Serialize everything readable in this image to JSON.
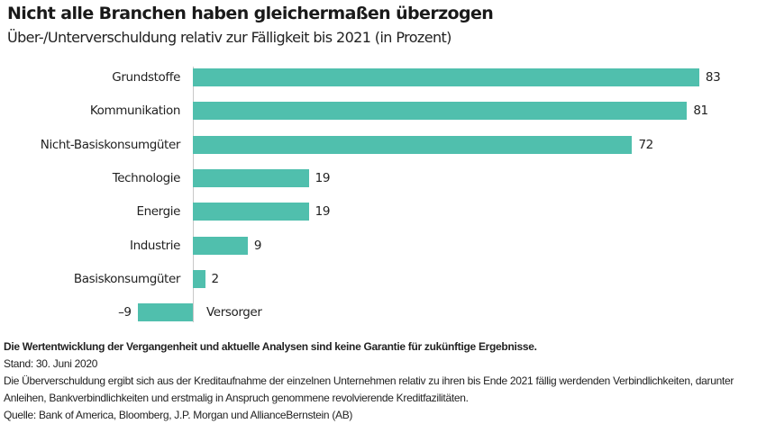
{
  "header": {
    "title": "Nicht alle Branchen haben gleichermaßen überzogen",
    "subtitle": "Über-/Unterverschuldung relativ zur Fälligkeit bis 2021 (in Prozent)"
  },
  "colors": {
    "bar": "#50bfad",
    "axis": "#c8c8c8",
    "text": "#222222"
  },
  "rows": [
    {
      "label": "Grundstoffe",
      "value": 83,
      "value_label": "83"
    },
    {
      "label": "Kommunikation",
      "value": 81,
      "value_label": "81"
    },
    {
      "label": "Nicht-Basiskonsumgüter",
      "value": 72,
      "value_label": "72"
    },
    {
      "label": "Technologie",
      "value": 19,
      "value_label": "19"
    },
    {
      "label": "Energie",
      "value": 19,
      "value_label": "19"
    },
    {
      "label": "Industrie",
      "value": 9,
      "value_label": "9"
    },
    {
      "label": "Basiskonsumgüter",
      "value": 2,
      "value_label": "2"
    },
    {
      "label": "Versorger",
      "value": -9,
      "value_label": "–9"
    }
  ],
  "footer": {
    "disclaimer": "Die Wertentwicklung der Vergangenheit und aktuelle Analysen sind keine Garantie für zukünftige Ergebnisse.",
    "date": "Stand: 30. Juni 2020",
    "note_line1": "Die Überverschuldung ergibt sich aus der Kreditaufnahme der einzelnen Unternehmen relativ zu ihren bis Ende 2021 fällig werdenden Verbindlichkeiten, darunter",
    "note_line2": "Anleihen, Bankverbindlichkeiten und erstmalig in Anspruch genommene revolvierende Kreditfazilitäten.",
    "source": "Quelle: Bank of America, Bloomberg, J.P. Morgan und AllianceBernstein (AB)"
  },
  "chart_data": {
    "type": "bar",
    "orientation": "horizontal",
    "title": "Nicht alle Branchen haben gleichermaßen überzogen",
    "subtitle": "Über-/Unterverschuldung relativ zur Fälligkeit bis 2021 (in Prozent)",
    "categories": [
      "Grundstoffe",
      "Kommunikation",
      "Nicht-Basiskonsumgüter",
      "Technologie",
      "Energie",
      "Industrie",
      "Basiskonsumgüter",
      "Versorger"
    ],
    "values": [
      83,
      81,
      72,
      19,
      19,
      9,
      2,
      -9
    ],
    "xlabel": "",
    "ylabel": "",
    "xlim": [
      -9,
      83
    ],
    "grid": false,
    "legend": null,
    "data_labels": true
  }
}
